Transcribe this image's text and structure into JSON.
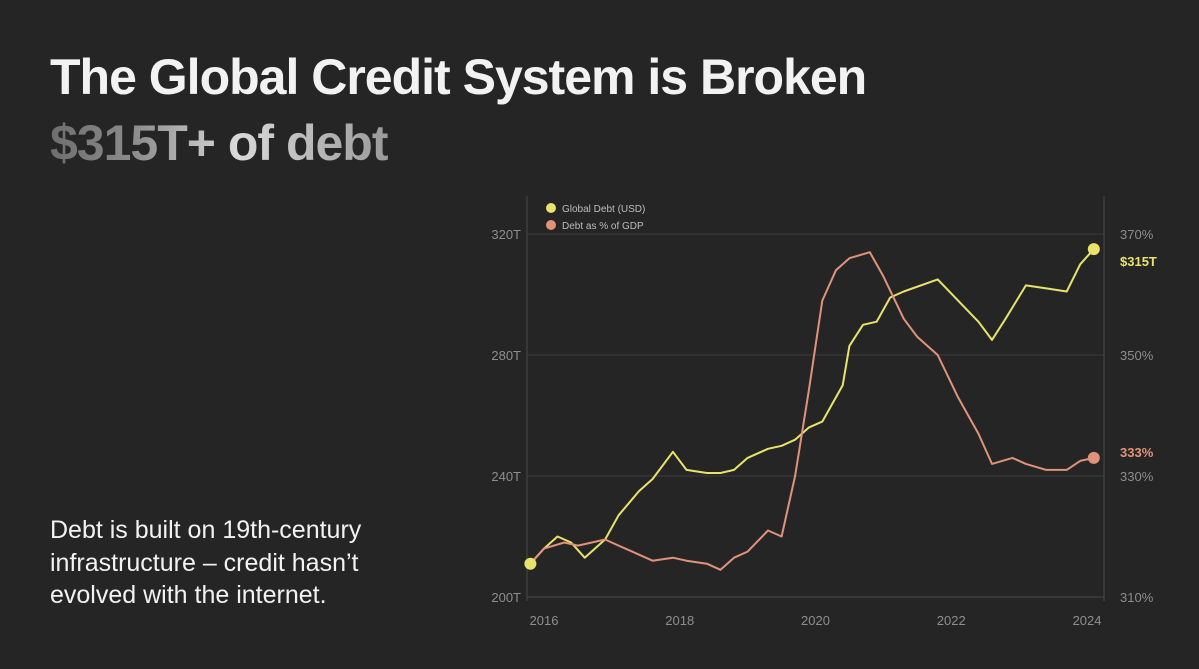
{
  "header": {
    "title": "The Global Credit System is Broken",
    "subtitle": "$315T+ of debt"
  },
  "body_text": "Debt is built on 19th-century infrastructure – credit hasn’t evolved with the internet.",
  "colors": {
    "background": "#262525",
    "global_debt": "#e8e36a",
    "debt_pct_gdp": "#e0937a",
    "grid": "#3d3c3c",
    "axis_text": "#8e8e8e"
  },
  "chart_data": {
    "type": "line",
    "title": "",
    "xlabel": "",
    "ylabel_left": "",
    "ylabel_right": "",
    "xlim": [
      2015.75,
      2024.25
    ],
    "x_ticks": [
      2016,
      2018,
      2020,
      2022,
      2024
    ],
    "x_tick_labels": [
      "2016",
      "2018",
      "2020",
      "2022",
      "2024"
    ],
    "ylim_left": [
      200,
      320
    ],
    "y_left_ticks": [
      200,
      240,
      280,
      320
    ],
    "y_left_tick_labels": [
      "200T",
      "240T",
      "280T",
      "320T"
    ],
    "ylim_right": [
      310,
      370
    ],
    "y_right_ticks": [
      310,
      330,
      350,
      370
    ],
    "y_right_tick_labels": [
      "310%",
      "330%",
      "350%",
      "370%"
    ],
    "grid": true,
    "legend": "top-left",
    "series": [
      {
        "name": "Global Debt (USD)",
        "axis": "left",
        "end_label": "$315T",
        "x": [
          2015.8,
          2016.0,
          2016.2,
          2016.4,
          2016.6,
          2016.9,
          2017.1,
          2017.4,
          2017.6,
          2017.9,
          2018.1,
          2018.4,
          2018.6,
          2018.8,
          2019.0,
          2019.3,
          2019.5,
          2019.7,
          2019.9,
          2020.1,
          2020.4,
          2020.5,
          2020.7,
          2020.9,
          2021.1,
          2021.3,
          2021.8,
          2022.4,
          2022.6,
          2022.8,
          2023.1,
          2023.4,
          2023.7,
          2023.9,
          2024.1
        ],
        "values": [
          211,
          216,
          220,
          218,
          213,
          219,
          227,
          235,
          239,
          248,
          242,
          241,
          241,
          242,
          246,
          249,
          250,
          252,
          256,
          258,
          270,
          283,
          290,
          291,
          299,
          301,
          305,
          291,
          285,
          292,
          303,
          302,
          301,
          310,
          315
        ]
      },
      {
        "name": "Debt as % of GDP",
        "axis": "right",
        "end_label": "333%",
        "x": [
          2015.8,
          2016.0,
          2016.3,
          2016.5,
          2016.9,
          2017.1,
          2017.3,
          2017.6,
          2017.9,
          2018.1,
          2018.4,
          2018.6,
          2018.8,
          2019.0,
          2019.3,
          2019.5,
          2019.7,
          2019.9,
          2020.1,
          2020.3,
          2020.5,
          2020.8,
          2021.0,
          2021.3,
          2021.5,
          2021.8,
          2022.1,
          2022.4,
          2022.6,
          2022.9,
          2023.1,
          2023.4,
          2023.7,
          2023.9,
          2024.1
        ],
        "values": [
          315.5,
          318.0,
          319.0,
          318.5,
          319.5,
          318.5,
          317.5,
          316.0,
          316.5,
          316.0,
          315.5,
          314.5,
          316.5,
          317.5,
          321.0,
          320.0,
          330.0,
          344.0,
          359.0,
          364.0,
          366.0,
          367.0,
          363.0,
          356.0,
          353.0,
          350.0,
          343.0,
          337.0,
          332.0,
          333.0,
          332.0,
          331.0,
          331.0,
          332.5,
          333.0
        ]
      }
    ]
  }
}
